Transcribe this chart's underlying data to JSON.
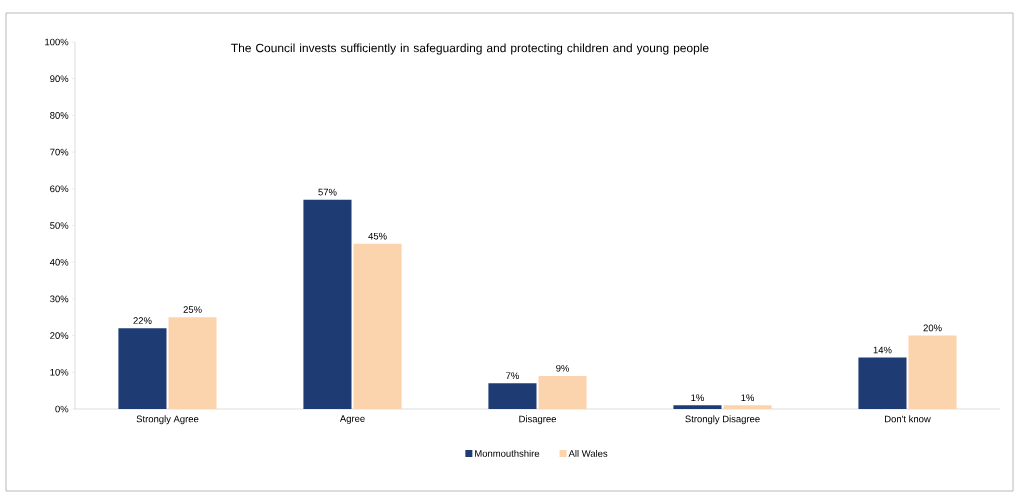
{
  "chart_data": {
    "type": "bar",
    "title": "The Council invests sufficiently in safeguarding and protecting children and young people",
    "categories": [
      "Strongly Agree",
      "Agree",
      "Disagree",
      "Strongly Disagree",
      "Don't know"
    ],
    "series": [
      {
        "name": "Monmouthshire",
        "color": "#1f3b73",
        "values": [
          22,
          57,
          7,
          1,
          14
        ],
        "value_labels": [
          "22%",
          "57%",
          "7%",
          "1%",
          "14%"
        ]
      },
      {
        "name": "All Wales",
        "color": "#fbd3ad",
        "values": [
          25,
          45,
          9,
          1,
          20
        ],
        "value_labels": [
          "25%",
          "45%",
          "9%",
          "1%",
          "20%"
        ]
      }
    ],
    "ylim": [
      0,
      100
    ],
    "yticks": [
      {
        "value": 0,
        "label": "0%"
      },
      {
        "value": 10,
        "label": "10%"
      },
      {
        "value": 20,
        "label": "20%"
      },
      {
        "value": 30,
        "label": "30%"
      },
      {
        "value": 40,
        "label": "40%"
      },
      {
        "value": 50,
        "label": "50%"
      },
      {
        "value": 60,
        "label": "60%"
      },
      {
        "value": 70,
        "label": "70%"
      },
      {
        "value": 80,
        "label": "80%"
      },
      {
        "value": 90,
        "label": "90%"
      },
      {
        "value": 100,
        "label": "100%"
      }
    ],
    "legend": "bottom"
  }
}
